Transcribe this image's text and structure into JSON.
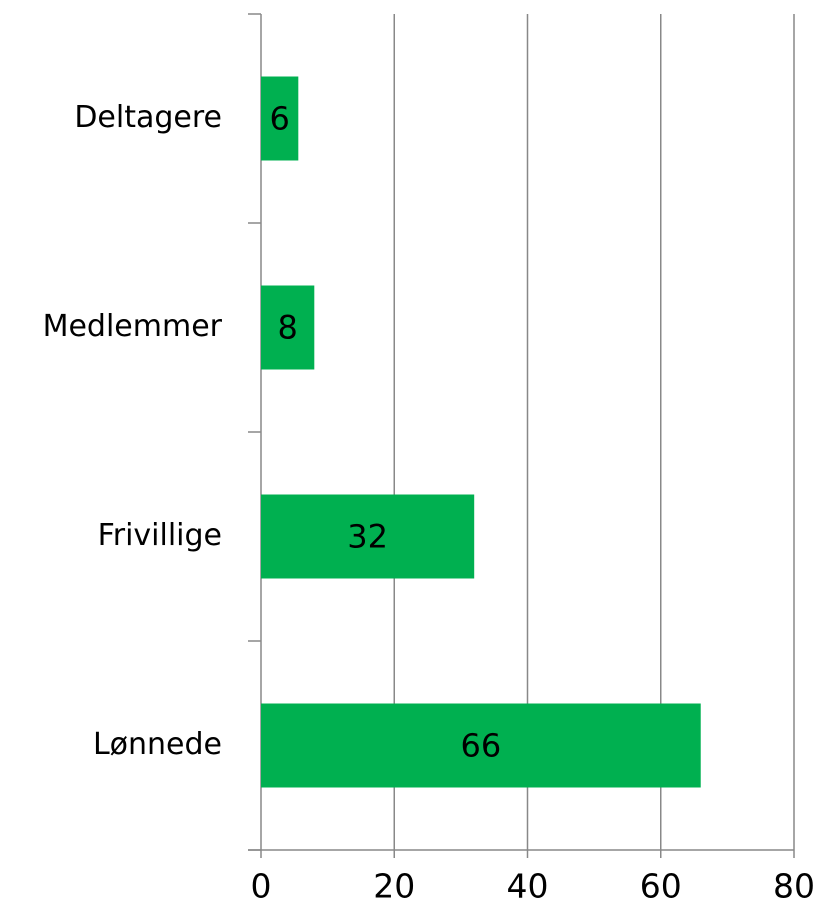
{
  "chart_data": {
    "type": "barh",
    "categories": [
      "Deltagere",
      "Medlemmer",
      "Frivillige",
      "Lønnede"
    ],
    "values": [
      5.6,
      8,
      32,
      66
    ],
    "value_labels": [
      "6",
      "8",
      "32",
      "66"
    ],
    "color": "#00b050",
    "xlim": [
      0,
      80
    ],
    "xticks": [
      0,
      20,
      40,
      60,
      80
    ],
    "grid": true
  }
}
